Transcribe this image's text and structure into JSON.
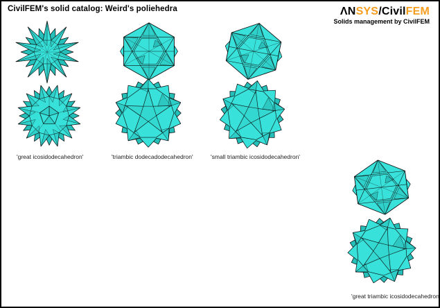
{
  "header": {
    "title": "CivilFEM's solid catalog: Weird's poliehedra"
  },
  "logo": {
    "segments": [
      {
        "text": "ΛN",
        "color": "#000000"
      },
      {
        "text": "SYS",
        "color": "#F59D1E"
      },
      {
        "text": "/Civil",
        "color": "#000000"
      },
      {
        "text": "FEM",
        "color": "#F59D1E"
      }
    ],
    "subtitle": "Solids management by CivilFEM"
  },
  "palette": {
    "face_light": "#38E1DA",
    "face_mid": "#25BFB9",
    "face_dark": "#148F8B",
    "edge": "#0b0b0b",
    "background": "#ffffff",
    "border": "#000000"
  },
  "solids": [
    {
      "shape": "spiky-star",
      "group": 0
    },
    {
      "shape": "hex-faceted",
      "group": 1
    },
    {
      "shape": "hex-faceted",
      "group": 2
    },
    {
      "shape": "spiky-ball",
      "group": 0
    },
    {
      "shape": "round-star",
      "group": 1
    },
    {
      "shape": "round-star",
      "group": 2
    },
    {
      "shape": "hex-faceted",
      "group": 3
    },
    {
      "shape": "round-star",
      "group": 3
    }
  ],
  "labels": [
    "'great icosidodecahedron'",
    "'triambic dodecadodecahedron'",
    "'small triambic icosidodecahedron'",
    "'great triambic icosidodecahedron'"
  ]
}
